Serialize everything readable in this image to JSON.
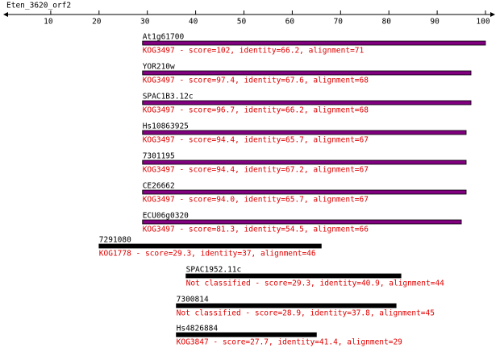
{
  "axis": {
    "title": "Eten_3620_orf2",
    "xlim": [
      0,
      102
    ],
    "xticks": [
      10,
      20,
      30,
      40,
      50,
      60,
      70,
      80,
      90,
      100
    ]
  },
  "hits": [
    {
      "name": "At1g61700",
      "start": 29,
      "end": 100,
      "color": "#800080",
      "description": "KOG3497 - score=102, identity=66.2, alignment=71"
    },
    {
      "name": "YOR210w",
      "start": 29,
      "end": 97,
      "color": "#800080",
      "description": "KOG3497 - score=97.4, identity=67.6, alignment=68"
    },
    {
      "name": "SPAC1B3.12c",
      "start": 29,
      "end": 97,
      "color": "#800080",
      "description": "KOG3497 - score=96.7, identity=66.2, alignment=68"
    },
    {
      "name": "Hs10863925",
      "start": 29,
      "end": 96,
      "color": "#800080",
      "description": "KOG3497 - score=94.4, identity=65.7, alignment=67"
    },
    {
      "name": "7301195",
      "start": 29,
      "end": 96,
      "color": "#800080",
      "description": "KOG3497 - score=94.4, identity=67.2, alignment=67"
    },
    {
      "name": "CE26662",
      "start": 29,
      "end": 96,
      "color": "#800080",
      "description": "KOG3497 - score=94.0, identity=65.7, alignment=67"
    },
    {
      "name": "ECU06g0320",
      "start": 29,
      "end": 95,
      "color": "#800080",
      "description": "KOG3497 - score=81.3, identity=54.5, alignment=66"
    },
    {
      "name": "7291080",
      "start": 20,
      "end": 66,
      "color": "#000000",
      "description": "KOG1778 - score=29.3, identity=37, alignment=46"
    },
    {
      "name": "SPAC1952.11c",
      "start": 38,
      "end": 82.5,
      "color": "#000000",
      "description": "Not classified - score=29.3, identity=40.9, alignment=44"
    },
    {
      "name": "7300814",
      "start": 36,
      "end": 81.5,
      "color": "#000000",
      "description": "Not classified - score=28.9, identity=37.8, alignment=45"
    },
    {
      "name": "Hs4826884",
      "start": 36,
      "end": 65,
      "color": "#000000",
      "description": "KOG3847 - score=27.7, identity=41.4, alignment=29"
    }
  ]
}
